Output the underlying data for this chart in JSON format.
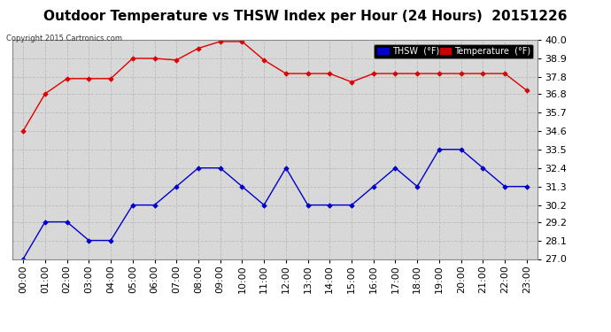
{
  "title": "Outdoor Temperature vs THSW Index per Hour (24 Hours)  20151226",
  "copyright": "Copyright 2015 Cartronics.com",
  "hours": [
    "00:00",
    "01:00",
    "02:00",
    "03:00",
    "04:00",
    "05:00",
    "06:00",
    "07:00",
    "08:00",
    "09:00",
    "10:00",
    "11:00",
    "12:00",
    "13:00",
    "14:00",
    "15:00",
    "16:00",
    "17:00",
    "18:00",
    "19:00",
    "20:00",
    "21:00",
    "22:00",
    "23:00"
  ],
  "temperature": [
    34.6,
    36.8,
    37.7,
    37.7,
    37.7,
    38.9,
    38.9,
    38.8,
    39.5,
    39.9,
    39.9,
    38.8,
    38.0,
    38.0,
    38.0,
    37.5,
    38.0,
    38.0,
    38.0,
    38.0,
    38.0,
    38.0,
    38.0,
    37.0
  ],
  "thsw": [
    27.0,
    29.2,
    29.2,
    28.1,
    28.1,
    30.2,
    30.2,
    31.3,
    32.4,
    32.4,
    31.3,
    30.2,
    32.4,
    30.2,
    30.2,
    30.2,
    31.3,
    32.4,
    31.3,
    33.5,
    33.5,
    32.4,
    31.3,
    31.3
  ],
  "ylim": [
    27.0,
    40.0
  ],
  "yticks": [
    27.0,
    28.1,
    29.2,
    30.2,
    31.3,
    32.4,
    33.5,
    34.6,
    35.7,
    36.8,
    37.8,
    38.9,
    40.0
  ],
  "temp_color": "#dd0000",
  "thsw_color": "#0000cc",
  "bg_color": "#ffffff",
  "plot_bg_color": "#d8d8d8",
  "grid_color": "#bbbbbb",
  "title_fontsize": 11,
  "copyright_fontsize": 6,
  "tick_fontsize": 8,
  "legend_thsw_bg": "#0000cc",
  "legend_temp_bg": "#cc0000"
}
